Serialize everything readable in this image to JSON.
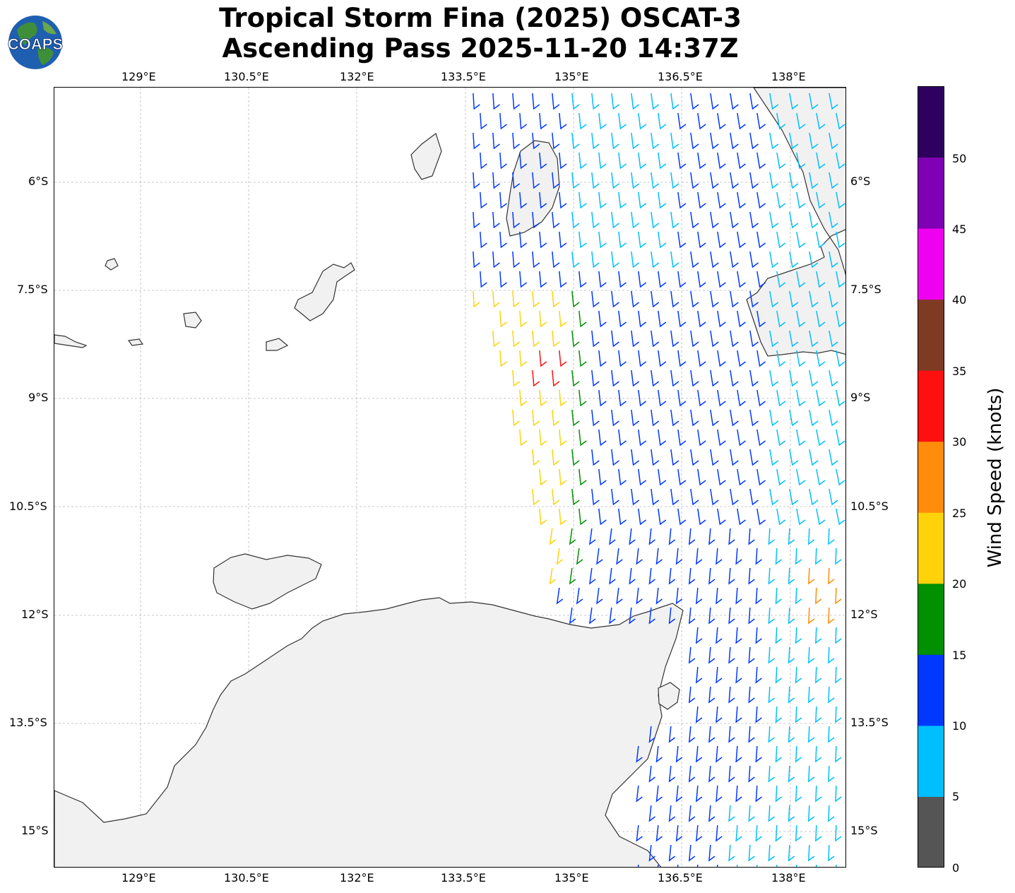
{
  "title": {
    "line1": "Tropical Storm Fina (2025) OSCAT-3",
    "line2": "Ascending Pass 2025-11-20 14:37Z"
  },
  "logo": {
    "text": "COAPS",
    "icon": "globe-icon"
  },
  "map": {
    "lon_ticks": [
      "129°E",
      "130.5°E",
      "132°E",
      "133.5°E",
      "135°E",
      "136.5°E",
      "138°E"
    ],
    "lat_ticks": [
      "6°S",
      "7.5°S",
      "9°S",
      "10.5°S",
      "12°S",
      "13.5°S",
      "15°S"
    ],
    "lon_range": [
      128.4,
      139.4
    ],
    "lat_range": [
      -15.5,
      -4.7
    ],
    "gridlines": true,
    "land_color": "#f2f2f2",
    "coastline_color": "#333333"
  },
  "colorbar": {
    "label": "Wind Speed (knots)",
    "ticks": [
      "0",
      "5",
      "10",
      "15",
      "20",
      "25",
      "30",
      "35",
      "40",
      "45",
      "50"
    ],
    "bins": [
      {
        "min": 0,
        "max": 5,
        "color": "#555555"
      },
      {
        "min": 5,
        "max": 10,
        "color": "#00bfff"
      },
      {
        "min": 10,
        "max": 15,
        "color": "#0038ff"
      },
      {
        "min": 15,
        "max": 20,
        "color": "#009000"
      },
      {
        "min": 20,
        "max": 25,
        "color": "#ffd20a"
      },
      {
        "min": 25,
        "max": 30,
        "color": "#ff8c0a"
      },
      {
        "min": 30,
        "max": 35,
        "color": "#ff1010"
      },
      {
        "min": 35,
        "max": 40,
        "color": "#7f3a24"
      },
      {
        "min": 40,
        "max": 45,
        "color": "#f000f0"
      },
      {
        "min": 45,
        "max": 50,
        "color": "#8000b5"
      },
      {
        "min": 50,
        "max": 55,
        "color": "#2e0060"
      }
    ]
  }
}
